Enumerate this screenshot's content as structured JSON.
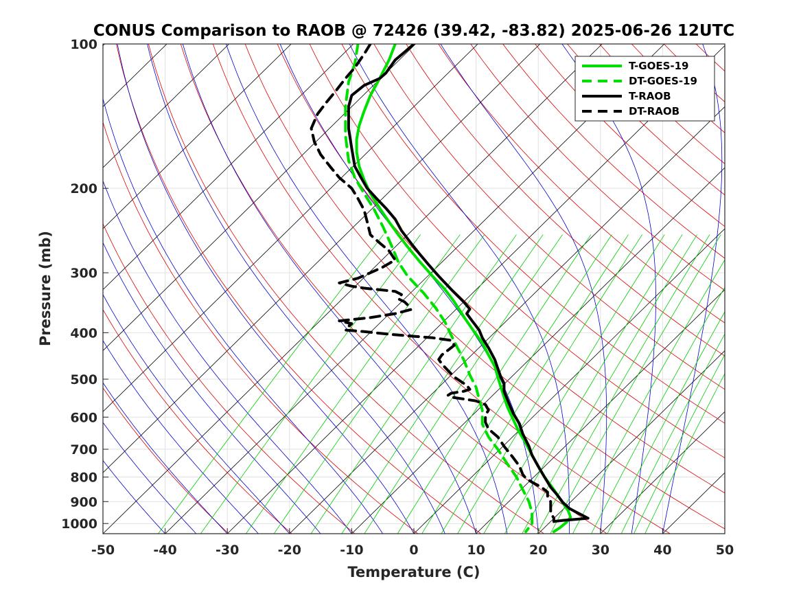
{
  "chart_data": {
    "type": "line",
    "title": "CONUS Comparison to RAOB @ 72426 (39.42, -83.82) 2025-06-26 12UTC",
    "xlabel": "Temperature (C)",
    "ylabel": "Pressure (mb)",
    "xlim": [
      -50,
      50
    ],
    "ylim": [
      1050,
      100
    ],
    "y_scale": "log",
    "x_ticks": [
      -50,
      -40,
      -30,
      -20,
      -10,
      0,
      10,
      20,
      30,
      40,
      50
    ],
    "x_tick_labels": [
      "-50",
      "-40",
      "-30",
      "-20",
      "-10",
      "0",
      "10",
      "20",
      "30",
      "40",
      "50"
    ],
    "y_ticks": [
      100,
      200,
      300,
      400,
      500,
      600,
      700,
      800,
      900,
      1000
    ],
    "y_tick_labels": [
      "100",
      "200",
      "300",
      "400",
      "500",
      "600",
      "700",
      "800",
      "900",
      "1000"
    ],
    "grid": true,
    "legend_position": "top-right",
    "background_lines": {
      "isotherms_color": "#000000",
      "dry_adiabats_color": "#dd0000",
      "moist_adiabats_color": "#0000cc",
      "mixing_ratio_color": "#00cc00"
    },
    "series": [
      {
        "name": "T-GOES-19",
        "color": "#00e000",
        "dash": "solid",
        "points": [
          [
            -3,
            100
          ],
          [
            -4,
            108
          ],
          [
            -5.5,
            118
          ],
          [
            -7,
            128
          ],
          [
            -8,
            138
          ],
          [
            -8.8,
            148
          ],
          [
            -9.2,
            158
          ],
          [
            -9.2,
            168
          ],
          [
            -8.8,
            180
          ],
          [
            -8,
            192
          ],
          [
            -7,
            205
          ],
          [
            -5.5,
            220
          ],
          [
            -4,
            235
          ],
          [
            -2.5,
            250
          ],
          [
            -1,
            265
          ],
          [
            1,
            285
          ],
          [
            3,
            305
          ],
          [
            5,
            325
          ],
          [
            6.5,
            345
          ],
          [
            8,
            370
          ],
          [
            9.5,
            395
          ],
          [
            11,
            420
          ],
          [
            12,
            445
          ],
          [
            13,
            470
          ],
          [
            13.5,
            495
          ],
          [
            14,
            520
          ],
          [
            14.5,
            545
          ],
          [
            15,
            570
          ],
          [
            15.8,
            600
          ],
          [
            16.8,
            640
          ],
          [
            18,
            680
          ],
          [
            19,
            720
          ],
          [
            20,
            760
          ],
          [
            21,
            800
          ],
          [
            22.5,
            850
          ],
          [
            23.8,
            900
          ],
          [
            24.8,
            940
          ],
          [
            25.2,
            970
          ],
          [
            24.5,
            995
          ],
          [
            23.5,
            1020
          ],
          [
            22.5,
            1040
          ]
        ]
      },
      {
        "name": "DT-GOES-19",
        "color": "#00e000",
        "dash": "dashed",
        "points": [
          [
            -9,
            100
          ],
          [
            -9.5,
            110
          ],
          [
            -10.5,
            120
          ],
          [
            -11,
            135
          ],
          [
            -11,
            155
          ],
          [
            -10.5,
            175
          ],
          [
            -9.5,
            190
          ],
          [
            -8,
            205
          ],
          [
            -6.5,
            220
          ],
          [
            -5,
            240
          ],
          [
            -3.5,
            265
          ],
          [
            -2.5,
            285
          ],
          [
            -1,
            305
          ],
          [
            1.5,
            330
          ],
          [
            3.5,
            355
          ],
          [
            5,
            380
          ],
          [
            6,
            405
          ],
          [
            7,
            430
          ],
          [
            8,
            455
          ],
          [
            9,
            490
          ],
          [
            10,
            520
          ],
          [
            10.5,
            550
          ],
          [
            11,
            580
          ],
          [
            11,
            620
          ],
          [
            12,
            660
          ],
          [
            13.5,
            700
          ],
          [
            15,
            750
          ],
          [
            16.5,
            800
          ],
          [
            17.5,
            850
          ],
          [
            18.5,
            900
          ],
          [
            19,
            950
          ],
          [
            19,
            1000
          ],
          [
            18,
            1040
          ]
        ]
      },
      {
        "name": "T-RAOB",
        "color": "#000000",
        "dash": "solid",
        "points": [
          [
            0,
            100
          ],
          [
            -1.5,
            104
          ],
          [
            -3,
            108
          ],
          [
            -4.5,
            115
          ],
          [
            -5.5,
            118
          ],
          [
            -8,
            122
          ],
          [
            -10,
            128
          ],
          [
            -10.5,
            135
          ],
          [
            -10.5,
            150
          ],
          [
            -10,
            165
          ],
          [
            -9.5,
            180
          ],
          [
            -8.5,
            190
          ],
          [
            -7.5,
            200
          ],
          [
            -6,
            210
          ],
          [
            -4.5,
            220
          ],
          [
            -3,
            232
          ],
          [
            -2,
            245
          ],
          [
            -0.5,
            260
          ],
          [
            1,
            275
          ],
          [
            2.5,
            290
          ],
          [
            4,
            305
          ],
          [
            6,
            325
          ],
          [
            8,
            345
          ],
          [
            9,
            357
          ],
          [
            8.5,
            365
          ],
          [
            9.5,
            380
          ],
          [
            10.5,
            395
          ],
          [
            11,
            410
          ],
          [
            12,
            430
          ],
          [
            13,
            455
          ],
          [
            13.5,
            475
          ],
          [
            14,
            495
          ],
          [
            14.5,
            510
          ],
          [
            14.5,
            530
          ],
          [
            15,
            550
          ],
          [
            15.5,
            570
          ],
          [
            16,
            590
          ],
          [
            17,
            620
          ],
          [
            17.5,
            650
          ],
          [
            18.5,
            690
          ],
          [
            19,
            720
          ],
          [
            20,
            760
          ],
          [
            21,
            800
          ],
          [
            22,
            840
          ],
          [
            23,
            870
          ],
          [
            24,
            905
          ],
          [
            25,
            930
          ],
          [
            26,
            945
          ],
          [
            27,
            960
          ],
          [
            28,
            975
          ],
          [
            26,
            980
          ],
          [
            24,
            985
          ],
          [
            22.5,
            990
          ]
        ]
      },
      {
        "name": "DT-RAOB",
        "color": "#000000",
        "dash": "dashed",
        "points": [
          [
            -7,
            100
          ],
          [
            -8,
            105
          ],
          [
            -9.5,
            112
          ],
          [
            -11,
            118
          ],
          [
            -12.5,
            125
          ],
          [
            -14,
            132
          ],
          [
            -15.5,
            140
          ],
          [
            -16.5,
            150
          ],
          [
            -16,
            160
          ],
          [
            -15,
            170
          ],
          [
            -13.5,
            180
          ],
          [
            -12,
            190
          ],
          [
            -10,
            200
          ],
          [
            -9,
            210
          ],
          [
            -8,
            222
          ],
          [
            -7.5,
            235
          ],
          [
            -7,
            250
          ],
          [
            -5.5,
            260
          ],
          [
            -4,
            270
          ],
          [
            -3,
            282
          ],
          [
            -5,
            292
          ],
          [
            -7,
            300
          ],
          [
            -9,
            308
          ],
          [
            -12,
            315
          ],
          [
            -10,
            320
          ],
          [
            -8,
            323
          ],
          [
            -6,
            325
          ],
          [
            -3,
            328
          ],
          [
            -2,
            333
          ],
          [
            -2.5,
            340
          ],
          [
            -1.5,
            345
          ],
          [
            -1,
            350
          ],
          [
            -0.5,
            358
          ],
          [
            -3,
            365
          ],
          [
            -7,
            372
          ],
          [
            -12,
            378
          ],
          [
            -10,
            383
          ],
          [
            -10.5,
            388
          ],
          [
            -11,
            395
          ],
          [
            -8,
            398
          ],
          [
            -4,
            403
          ],
          [
            0,
            407
          ],
          [
            3,
            410
          ],
          [
            6,
            415
          ],
          [
            6.5,
            425
          ],
          [
            5.5,
            435
          ],
          [
            4.5,
            445
          ],
          [
            4,
            455
          ],
          [
            4.5,
            465
          ],
          [
            5.5,
            480
          ],
          [
            6.5,
            495
          ],
          [
            7.5,
            505
          ],
          [
            8.5,
            515
          ],
          [
            9,
            525
          ],
          [
            8,
            530
          ],
          [
            6,
            535
          ],
          [
            5.5,
            540
          ],
          [
            6,
            545
          ],
          [
            8,
            550
          ],
          [
            10,
            555
          ],
          [
            11.5,
            565
          ],
          [
            12,
            580
          ],
          [
            11.5,
            595
          ],
          [
            11.5,
            615
          ],
          [
            12,
            635
          ],
          [
            13.5,
            660
          ],
          [
            14.5,
            690
          ],
          [
            16,
            730
          ],
          [
            17,
            760
          ],
          [
            17.5,
            790
          ],
          [
            18,
            805
          ],
          [
            19,
            820
          ],
          [
            20.5,
            840
          ],
          [
            21.5,
            860
          ],
          [
            21.5,
            880
          ],
          [
            22,
            900
          ],
          [
            22,
            925
          ],
          [
            22,
            950
          ],
          [
            22.5,
            975
          ],
          [
            22.5,
            990
          ]
        ]
      }
    ]
  }
}
